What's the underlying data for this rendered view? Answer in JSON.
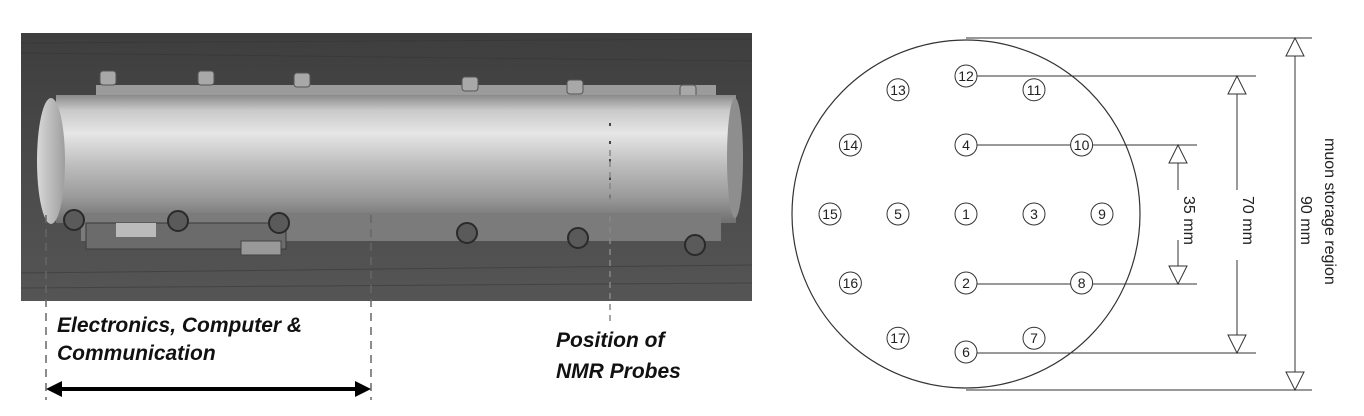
{
  "labels": {
    "electronics_line1": "Electronics,  Computer &",
    "electronics_line2": "Communication",
    "nmr_line1": "Position of",
    "nmr_line2": "NMR Probes"
  },
  "diagram": {
    "probes": [
      {
        "id": "1",
        "row": 0,
        "col": 0
      },
      {
        "id": "2",
        "row": 1,
        "col": 0
      },
      {
        "id": "3",
        "row": 0,
        "col": 1
      },
      {
        "id": "4",
        "row": -1,
        "col": 0
      },
      {
        "id": "5",
        "row": 0,
        "col": -1
      },
      {
        "id": "6",
        "row": 2,
        "col": 0
      },
      {
        "id": "7",
        "row": 1.8,
        "col": 1
      },
      {
        "id": "8",
        "row": 1,
        "col": 1.7
      },
      {
        "id": "9",
        "row": 0,
        "col": 2
      },
      {
        "id": "10",
        "row": -1,
        "col": 1.7
      },
      {
        "id": "11",
        "row": -1.8,
        "col": 1
      },
      {
        "id": "12",
        "row": -2,
        "col": 0
      },
      {
        "id": "13",
        "row": -1.8,
        "col": -1
      },
      {
        "id": "14",
        "row": -1,
        "col": -1.7
      },
      {
        "id": "15",
        "row": 0,
        "col": -2
      },
      {
        "id": "16",
        "row": 1,
        "col": -1.7
      },
      {
        "id": "17",
        "row": 1.8,
        "col": -1
      }
    ],
    "dimensions": {
      "inner": "35 mm",
      "middle": "70 mm",
      "outer_line1": "90 mm",
      "outer_line2": "muon storage region"
    }
  }
}
